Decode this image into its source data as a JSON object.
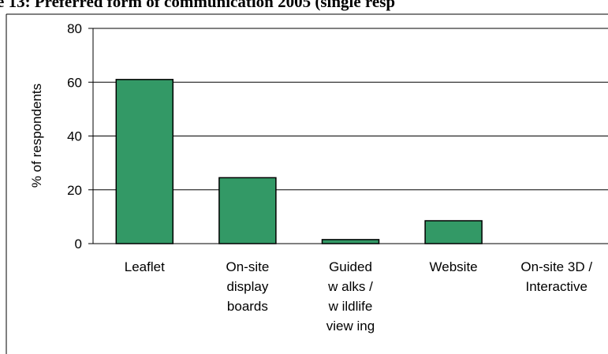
{
  "chart_data": {
    "type": "bar",
    "title": "e 13: Preferred form of communication 2005 (single resp",
    "ylabel": "% of respondents",
    "categories": [
      [
        "Leaflet"
      ],
      [
        "On-site",
        "display",
        "boards"
      ],
      [
        "Guided",
        "w alks /",
        "w ildlife",
        "view ing"
      ],
      [
        "Website"
      ],
      [
        "On-site 3D /",
        "Interactive"
      ]
    ],
    "values": [
      61,
      24.5,
      1.5,
      8.5,
      0
    ],
    "color": "#339966",
    "ylim": [
      0,
      80
    ],
    "yticks": [
      0,
      20,
      40,
      60,
      80
    ],
    "grid": true
  }
}
